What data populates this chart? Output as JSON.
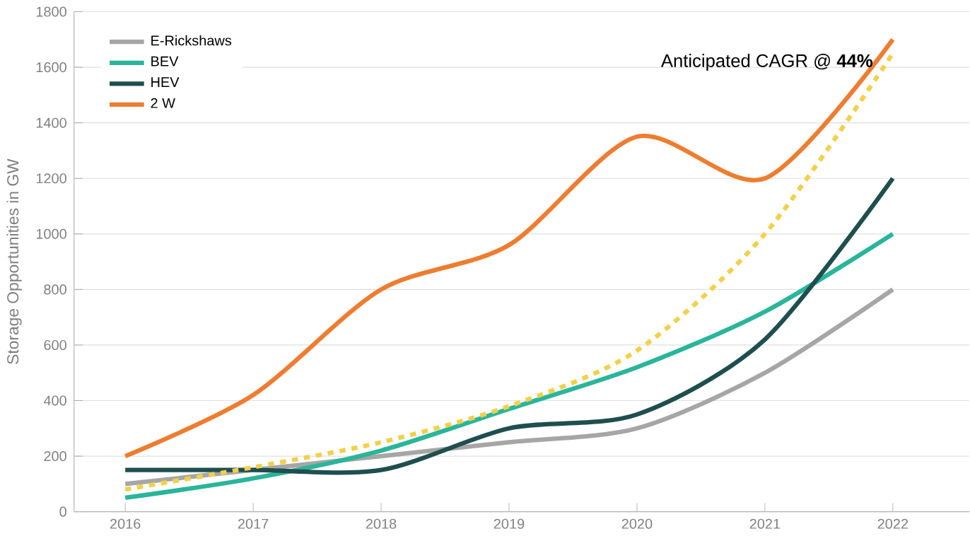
{
  "chart_data": {
    "type": "line",
    "ylabel": "Storage Opportunities in GW",
    "categories": [
      "2016",
      "2017",
      "2018",
      "2019",
      "2020",
      "2021",
      "2022"
    ],
    "series": [
      {
        "name": "E-Rickshaws",
        "color": "#a6a6a6",
        "values": [
          100,
          150,
          200,
          250,
          300,
          500,
          800
        ]
      },
      {
        "name": "BEV",
        "color": "#2ab59a",
        "values": [
          50,
          120,
          220,
          370,
          520,
          720,
          1000
        ]
      },
      {
        "name": "HEV",
        "color": "#1f4e4f",
        "values": [
          150,
          150,
          150,
          300,
          350,
          620,
          1200
        ]
      },
      {
        "name": "2 W",
        "color": "#ed7d31",
        "values": [
          200,
          420,
          800,
          960,
          1350,
          1200,
          1700
        ]
      },
      {
        "color": "#f2d04a",
        "line_style": "dashed",
        "values": [
          80,
          160,
          250,
          380,
          580,
          1000,
          1650
        ]
      }
    ],
    "ylim": [
      0,
      1800
    ],
    "yticks": [
      0,
      200,
      400,
      600,
      800,
      1000,
      1200,
      1400,
      1600,
      1800
    ],
    "grid": "y",
    "legend": "top left",
    "marker": "none",
    "line_style": "solid",
    "annotations": [
      "Anticipated CAGR @ **44%**"
    ]
  }
}
